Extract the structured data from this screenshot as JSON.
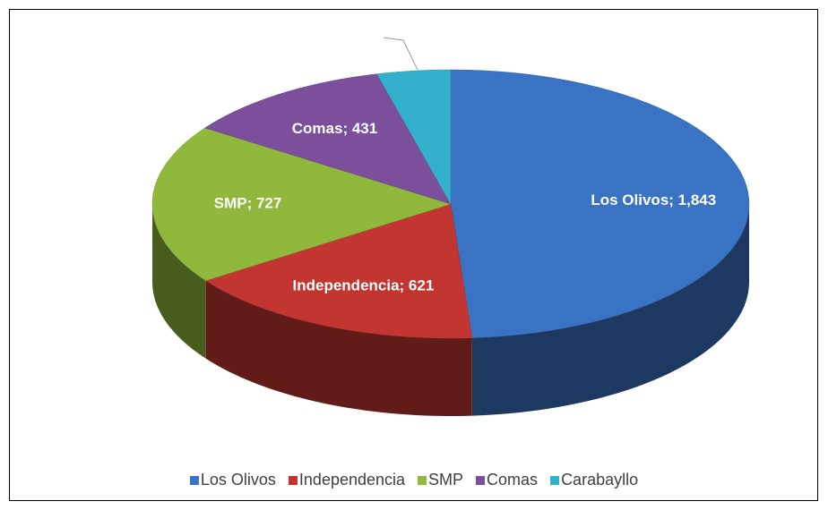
{
  "chart_data": {
    "type": "pie",
    "three_d": true,
    "categories": [
      "Los Olivos",
      "Independencia",
      "SMP",
      "Comas",
      "Carabayllo"
    ],
    "values": [
      1843,
      621,
      727,
      431,
      150
    ],
    "value_labels": [
      "Los Olivos; 1,843",
      "Independencia; 621",
      "SMP; 727",
      "Comas; 431",
      null
    ],
    "colors": [
      "#3a72c4",
      "#c23530",
      "#8fb83c",
      "#7b4f9c",
      "#33b0cc"
    ],
    "legend": "bottom"
  }
}
